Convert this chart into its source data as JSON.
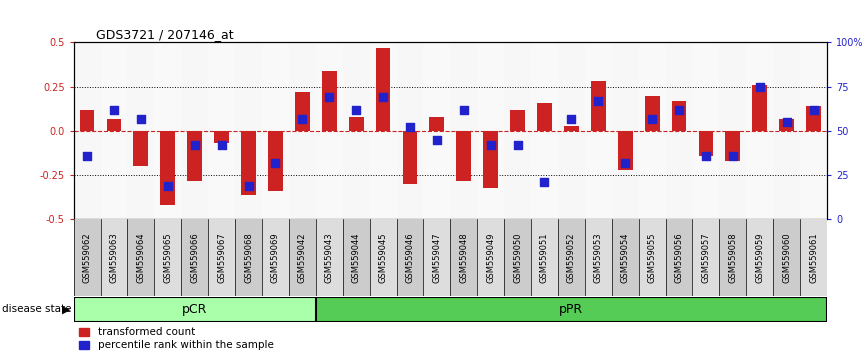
{
  "title": "GDS3721 / 207146_at",
  "samples": [
    "GSM559062",
    "GSM559063",
    "GSM559064",
    "GSM559065",
    "GSM559066",
    "GSM559067",
    "GSM559068",
    "GSM559069",
    "GSM559042",
    "GSM559043",
    "GSM559044",
    "GSM559045",
    "GSM559046",
    "GSM559047",
    "GSM559048",
    "GSM559049",
    "GSM559050",
    "GSM559051",
    "GSM559052",
    "GSM559053",
    "GSM559054",
    "GSM559055",
    "GSM559056",
    "GSM559057",
    "GSM559058",
    "GSM559059",
    "GSM559060",
    "GSM559061"
  ],
  "transformed_count": [
    0.12,
    0.07,
    -0.2,
    -0.42,
    -0.28,
    -0.07,
    -0.36,
    -0.34,
    0.22,
    0.34,
    0.08,
    0.47,
    -0.3,
    0.08,
    -0.28,
    -0.32,
    0.12,
    0.16,
    0.03,
    0.28,
    -0.22,
    0.2,
    0.17,
    -0.14,
    -0.17,
    0.26,
    0.07,
    0.14
  ],
  "percentile_rank_pct": [
    36,
    62,
    57,
    19,
    42,
    42,
    19,
    32,
    57,
    69,
    62,
    69,
    52,
    45,
    62,
    42,
    42,
    21,
    57,
    67,
    32,
    57,
    62,
    36,
    36,
    75,
    55,
    62
  ],
  "pcr_count": 9,
  "ppr_count": 19,
  "bar_color": "#cc2222",
  "dot_color": "#2222cc",
  "pcr_color": "#aaffaa",
  "ppr_color": "#55cc55",
  "bg_color": "#ffffff",
  "plot_bg": "#ffffff",
  "ylim": [
    -0.5,
    0.5
  ],
  "yticks_left": [
    -0.5,
    -0.25,
    0.0,
    0.25,
    0.5
  ],
  "yticks_right_pct": [
    0,
    25,
    50,
    75,
    100
  ],
  "dotted_line_color": "#000000",
  "zero_line_color": "#cc2222",
  "tick_bg_colors": [
    "#cccccc",
    "#dddddd"
  ],
  "bar_width": 0.55,
  "dot_size": 28,
  "title_fontsize": 9,
  "tick_fontsize": 6,
  "ytick_fontsize": 7
}
